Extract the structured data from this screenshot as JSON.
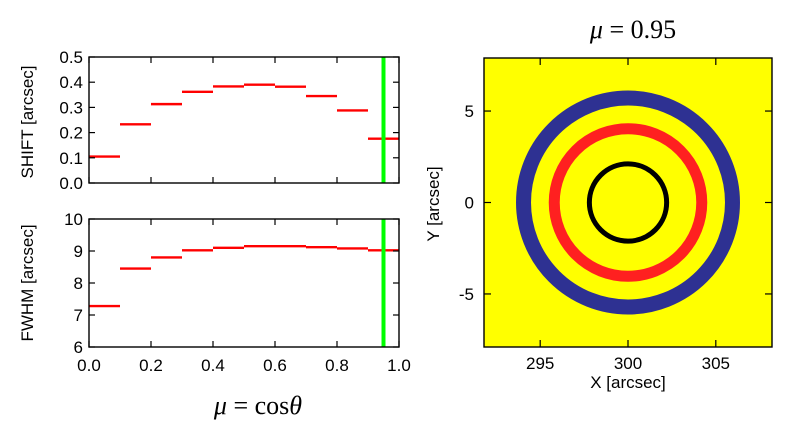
{
  "chart_data": [
    {
      "type": "line",
      "ylabel": "SHIFT [arcsec]",
      "xlim": [
        0.0,
        1.0
      ],
      "ylim": [
        0.0,
        0.5
      ],
      "yticks": [
        "0.0",
        "0.1",
        "0.2",
        "0.3",
        "0.4",
        "0.5"
      ],
      "step_width": 0.1,
      "x_start": [
        0.0,
        0.1,
        0.2,
        0.3,
        0.4,
        0.5,
        0.6,
        0.7,
        0.8,
        0.9
      ],
      "values": [
        0.105,
        0.233,
        0.313,
        0.362,
        0.383,
        0.39,
        0.382,
        0.345,
        0.288,
        0.176
      ],
      "marker_x": 0.95,
      "colors": {
        "steps": "#ff0000",
        "marker": "#00ff00"
      }
    },
    {
      "type": "line",
      "ylabel": "FWHM [arcsec]",
      "xlabel_math": {
        "mu": "μ",
        "eq": " = cos",
        "theta": "θ"
      },
      "xlim": [
        0.0,
        1.0
      ],
      "ylim": [
        6,
        10
      ],
      "xticks": [
        "0.0",
        "0.2",
        "0.4",
        "0.6",
        "0.8",
        "1.0"
      ],
      "yticks": [
        "6",
        "7",
        "8",
        "9",
        "10"
      ],
      "step_width": 0.1,
      "x_start": [
        0.0,
        0.1,
        0.2,
        0.3,
        0.4,
        0.5,
        0.6,
        0.7,
        0.8,
        0.9
      ],
      "values": [
        7.28,
        8.45,
        8.8,
        9.02,
        9.1,
        9.15,
        9.15,
        9.12,
        9.08,
        9.02
      ],
      "marker_x": 0.95,
      "colors": {
        "steps": "#ff0000",
        "marker": "#00ff00"
      }
    },
    {
      "type": "scatter",
      "title_math": {
        "mu": "μ",
        "value": " = 0.95"
      },
      "xlabel": "X [arcsec]",
      "ylabel": "Y [arcsec]",
      "xlim": [
        291.8,
        308.2
      ],
      "ylim": [
        -7.9,
        7.9
      ],
      "xticks": [
        "295",
        "300",
        "305"
      ],
      "yticks": [
        "5",
        "0",
        "-5"
      ],
      "circles": [
        {
          "name": "outer",
          "cx": 300.0,
          "cy": 0.0,
          "r": 5.95,
          "color": "#2e3192"
        },
        {
          "name": "middle",
          "cx": 300.0,
          "cy": 0.0,
          "r": 4.2,
          "color": "#ff2020"
        },
        {
          "name": "inner",
          "cx": 300.0,
          "cy": 0.0,
          "r": 2.2,
          "color": "#000000"
        }
      ],
      "colors": {
        "background": "#ffff00"
      }
    }
  ]
}
